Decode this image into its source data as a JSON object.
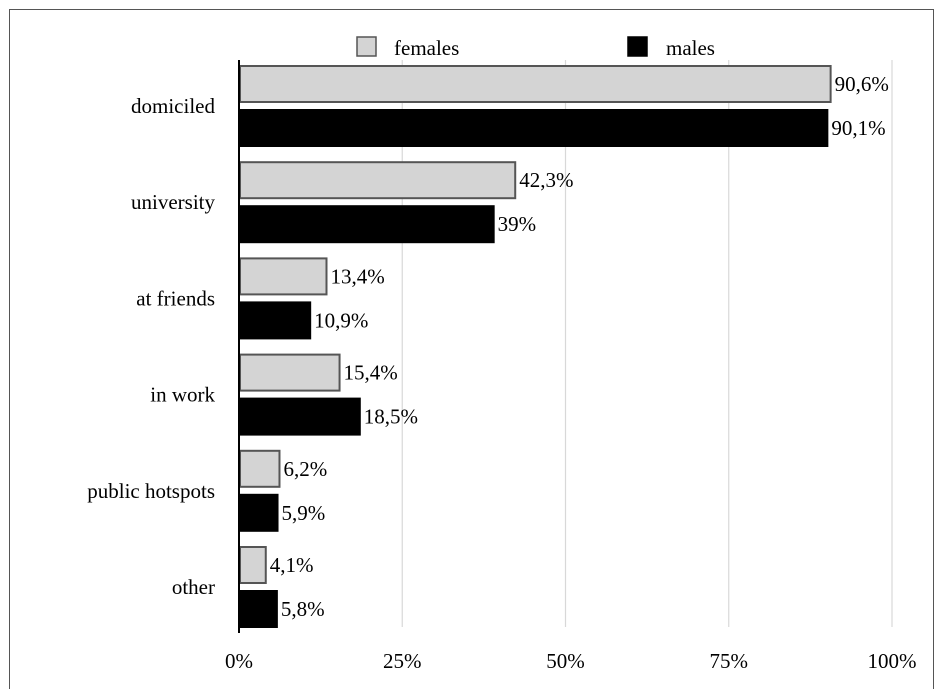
{
  "chart_data": {
    "type": "bar",
    "orientation": "horizontal",
    "categories": [
      "domiciled",
      "university",
      "at friends",
      "in work",
      "public hotspots",
      "other"
    ],
    "series": [
      {
        "name": "females",
        "values": [
          90.6,
          42.3,
          13.4,
          15.4,
          6.2,
          4.1
        ],
        "labels": [
          "90,6%",
          "42,3%",
          "13,4%",
          "15,4%",
          "6,2%",
          "4,1%"
        ],
        "color": "#d4d4d4",
        "stroke": "#555555"
      },
      {
        "name": "males",
        "values": [
          90.1,
          39,
          10.9,
          18.5,
          5.9,
          5.8
        ],
        "labels": [
          "90,1%",
          "39%",
          "10,9%",
          "18,5%",
          "5,9%",
          "5,8%"
        ],
        "color": "#000000",
        "stroke": "#000000"
      }
    ],
    "xticks": [
      "0%",
      "25%",
      "50%",
      "75%",
      "100%"
    ],
    "xlim": [
      0,
      100
    ],
    "grid": "vertical",
    "legend": "top-center",
    "title": "",
    "xlabel": "",
    "ylabel": ""
  }
}
